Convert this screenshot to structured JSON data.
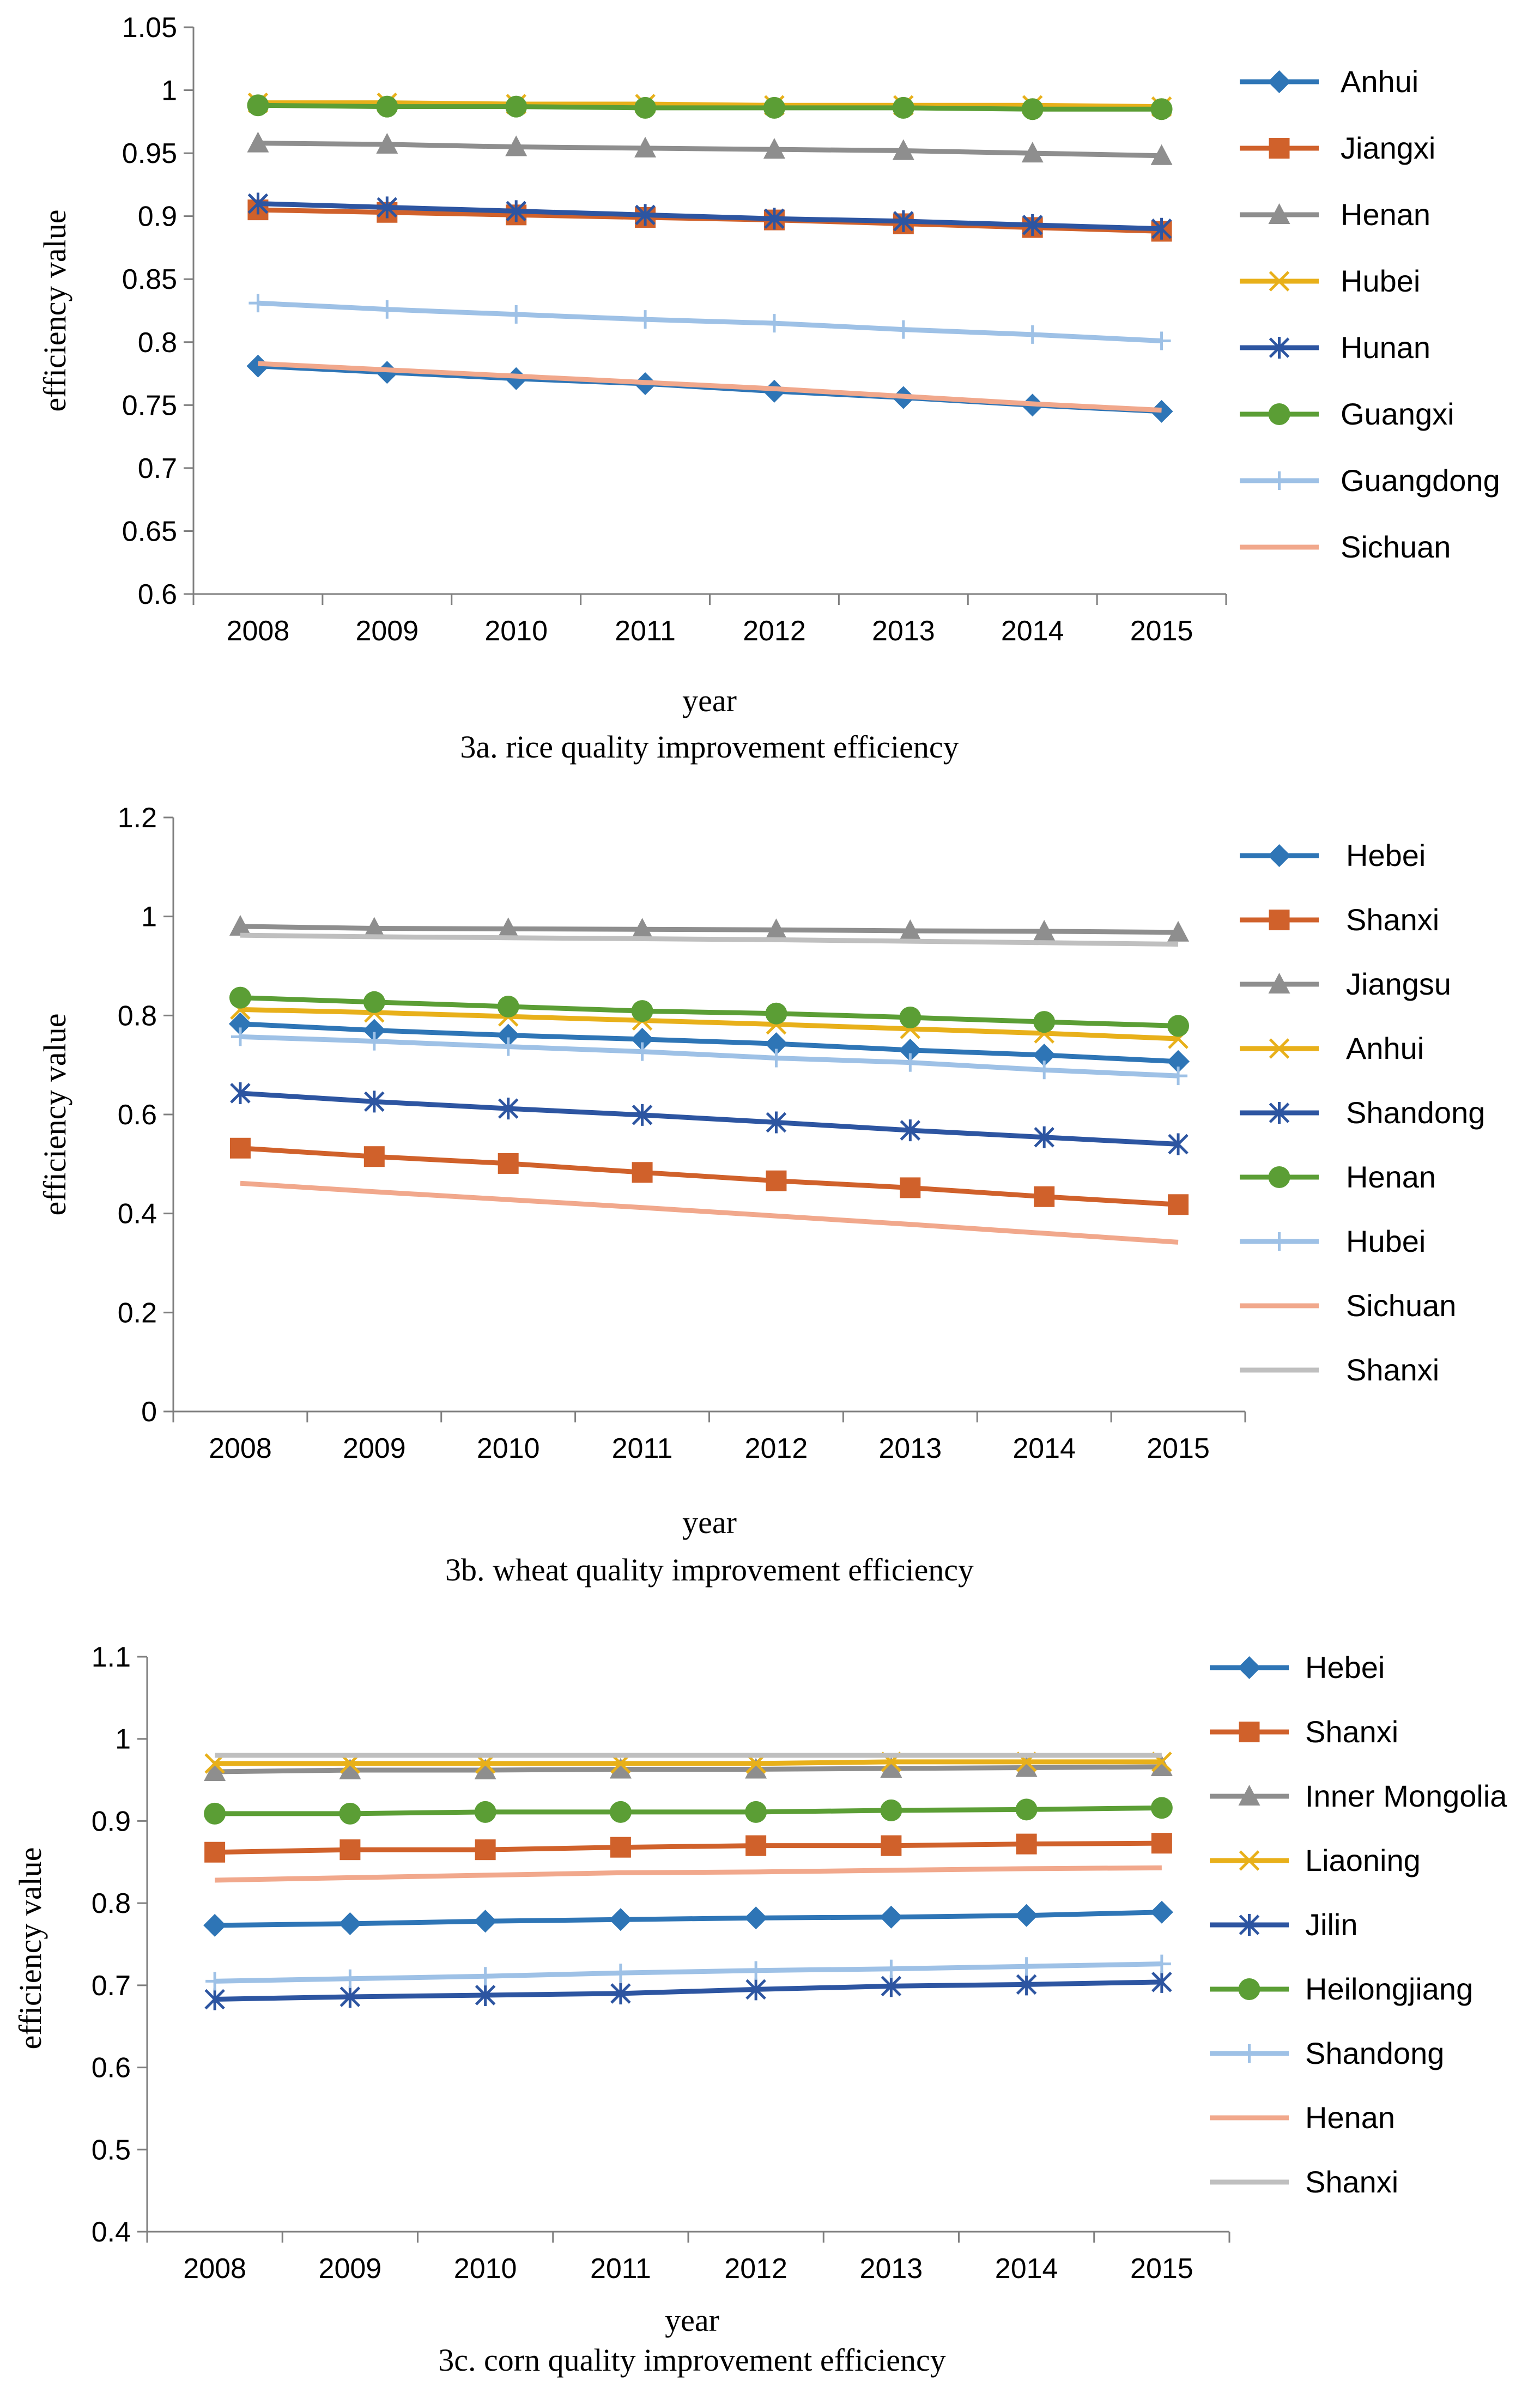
{
  "chart_data": [
    {
      "type": "line",
      "title": "3a. rice quality improvement efficiency",
      "xlabel": "year",
      "ylabel": "efficiency value",
      "ylim": [
        0.6,
        1.05
      ],
      "yticks": [
        "0.6",
        "0.65",
        "0.7",
        "0.75",
        "0.8",
        "0.85",
        "0.9",
        "0.95",
        "1",
        "1.05"
      ],
      "categories": [
        "2008",
        "2009",
        "2010",
        "2011",
        "2012",
        "2013",
        "2014",
        "2015"
      ],
      "grid": false,
      "legend": "right",
      "series": [
        {
          "name": "Anhui",
          "color": "#2E75B6",
          "marker": "diamond",
          "values": [
            0.781,
            0.776,
            0.771,
            0.767,
            0.761,
            0.756,
            0.75,
            0.745
          ]
        },
        {
          "name": "Jiangxi",
          "color": "#D0612B",
          "marker": "square",
          "values": [
            0.905,
            0.903,
            0.901,
            0.899,
            0.897,
            0.894,
            0.891,
            0.888
          ]
        },
        {
          "name": "Henan",
          "color": "#8E8E8E",
          "marker": "triangle",
          "values": [
            0.958,
            0.957,
            0.955,
            0.954,
            0.953,
            0.952,
            0.95,
            0.948
          ]
        },
        {
          "name": "Hubei",
          "color": "#E8B01A",
          "marker": "x",
          "values": [
            0.99,
            0.99,
            0.989,
            0.989,
            0.988,
            0.988,
            0.988,
            0.987
          ]
        },
        {
          "name": "Hunan",
          "color": "#2D55A1",
          "marker": "star",
          "values": [
            0.91,
            0.907,
            0.904,
            0.901,
            0.898,
            0.896,
            0.893,
            0.89
          ]
        },
        {
          "name": "Guangxi",
          "color": "#5B9E35",
          "marker": "circle",
          "values": [
            0.988,
            0.987,
            0.987,
            0.986,
            0.986,
            0.986,
            0.985,
            0.985
          ]
        },
        {
          "name": "Guangdong",
          "color": "#9EC1E6",
          "marker": "plus",
          "values": [
            0.831,
            0.826,
            0.822,
            0.818,
            0.815,
            0.81,
            0.806,
            0.801
          ]
        },
        {
          "name": "Sichuan",
          "color": "#F1A88C",
          "marker": "none",
          "values": [
            0.783,
            0.778,
            0.773,
            0.768,
            0.763,
            0.757,
            0.751,
            0.746
          ]
        }
      ]
    },
    {
      "type": "line",
      "title": "3b. wheat quality improvement efficiency",
      "xlabel": "year",
      "ylabel": "efficiency value",
      "ylim": [
        0,
        1.2
      ],
      "yticks": [
        "0",
        "0.2",
        "0.4",
        "0.6",
        "0.8",
        "1",
        "1.2"
      ],
      "categories": [
        "2008",
        "2009",
        "2010",
        "2011",
        "2012",
        "2013",
        "2014",
        "2015"
      ],
      "grid": false,
      "legend": "right",
      "series": [
        {
          "name": "Hebei",
          "color": "#2E75B6",
          "marker": "diamond",
          "values": [
            0.783,
            0.77,
            0.76,
            0.752,
            0.743,
            0.73,
            0.72,
            0.707
          ]
        },
        {
          "name": "Shanxi",
          "color": "#D0612B",
          "marker": "square",
          "values": [
            0.532,
            0.515,
            0.501,
            0.483,
            0.466,
            0.452,
            0.434,
            0.418
          ]
        },
        {
          "name": "Jiangsu",
          "color": "#8E8E8E",
          "marker": "triangle",
          "values": [
            0.98,
            0.976,
            0.975,
            0.974,
            0.973,
            0.971,
            0.97,
            0.968
          ]
        },
        {
          "name": "Anhui",
          "color": "#E8B01A",
          "marker": "x",
          "values": [
            0.812,
            0.806,
            0.798,
            0.79,
            0.782,
            0.773,
            0.764,
            0.753
          ]
        },
        {
          "name": "Shandong",
          "color": "#2D55A1",
          "marker": "star",
          "values": [
            0.643,
            0.626,
            0.612,
            0.599,
            0.584,
            0.568,
            0.554,
            0.54
          ]
        },
        {
          "name": "Henan",
          "color": "#5B9E35",
          "marker": "circle",
          "values": [
            0.836,
            0.827,
            0.818,
            0.809,
            0.804,
            0.796,
            0.787,
            0.779
          ]
        },
        {
          "name": "Hubei",
          "color": "#9EC1E6",
          "marker": "plus",
          "values": [
            0.757,
            0.748,
            0.737,
            0.727,
            0.714,
            0.705,
            0.69,
            0.678
          ]
        },
        {
          "name": "Sichuan",
          "color": "#F1A88C",
          "marker": "none",
          "values": [
            0.461,
            0.444,
            0.428,
            0.412,
            0.395,
            0.378,
            0.36,
            0.342
          ]
        },
        {
          "name": "Shanxi",
          "color": "#BFBFBF",
          "marker": "none",
          "values": [
            0.962,
            0.959,
            0.957,
            0.955,
            0.953,
            0.95,
            0.947,
            0.944
          ]
        }
      ]
    },
    {
      "type": "line",
      "title": "3c. corn quality improvement efficiency",
      "xlabel": "year",
      "ylabel": "efficiency value",
      "ylim": [
        0.4,
        1.1
      ],
      "yticks": [
        "0.4",
        "0.5",
        "0.6",
        "0.7",
        "0.8",
        "0.9",
        "1",
        "1.1"
      ],
      "categories": [
        "2008",
        "2009",
        "2010",
        "2011",
        "2012",
        "2013",
        "2014",
        "2015"
      ],
      "grid": false,
      "legend": "right",
      "series": [
        {
          "name": "Hebei",
          "color": "#2E75B6",
          "marker": "diamond",
          "values": [
            0.773,
            0.775,
            0.778,
            0.78,
            0.782,
            0.783,
            0.785,
            0.789
          ]
        },
        {
          "name": "Shanxi",
          "color": "#D0612B",
          "marker": "square",
          "values": [
            0.862,
            0.865,
            0.865,
            0.868,
            0.87,
            0.87,
            0.872,
            0.873
          ]
        },
        {
          "name": "Inner Mongolia",
          "color": "#8E8E8E",
          "marker": "triangle",
          "values": [
            0.96,
            0.962,
            0.962,
            0.963,
            0.963,
            0.964,
            0.965,
            0.966
          ]
        },
        {
          "name": "Liaoning",
          "color": "#E8B01A",
          "marker": "x",
          "values": [
            0.97,
            0.97,
            0.97,
            0.97,
            0.97,
            0.972,
            0.972,
            0.972
          ]
        },
        {
          "name": "Jilin",
          "color": "#2D55A1",
          "marker": "star",
          "values": [
            0.683,
            0.686,
            0.688,
            0.69,
            0.695,
            0.699,
            0.701,
            0.704
          ]
        },
        {
          "name": "Heilongjiang",
          "color": "#5B9E35",
          "marker": "circle",
          "values": [
            0.909,
            0.909,
            0.911,
            0.911,
            0.911,
            0.913,
            0.914,
            0.916
          ]
        },
        {
          "name": "Shandong",
          "color": "#9EC1E6",
          "marker": "plus",
          "values": [
            0.705,
            0.708,
            0.711,
            0.715,
            0.718,
            0.72,
            0.723,
            0.726
          ]
        },
        {
          "name": "Henan",
          "color": "#F1A88C",
          "marker": "none",
          "values": [
            0.828,
            0.831,
            0.834,
            0.837,
            0.838,
            0.84,
            0.842,
            0.843
          ]
        },
        {
          "name": "Shanxi",
          "color": "#BFBFBF",
          "marker": "none",
          "values": [
            0.98,
            0.98,
            0.98,
            0.98,
            0.98,
            0.98,
            0.98,
            0.98
          ]
        }
      ]
    }
  ]
}
